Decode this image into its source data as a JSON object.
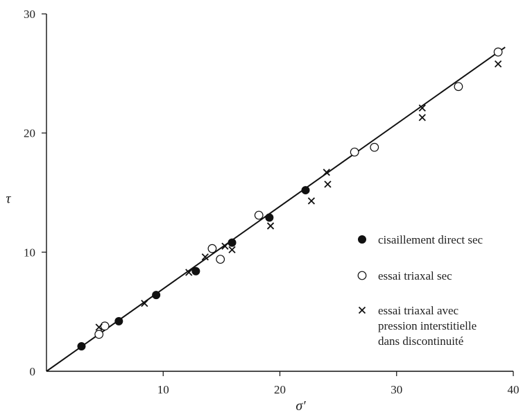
{
  "chart_data": {
    "type": "scatter",
    "xlabel": "σ′",
    "ylabel": "τ",
    "xlim": [
      0,
      40
    ],
    "ylim": [
      0,
      30
    ],
    "x_ticks": [
      0,
      10,
      20,
      30,
      40
    ],
    "y_ticks": [
      0,
      10,
      20,
      30
    ],
    "legend_position": "right",
    "grid": false,
    "series": [
      {
        "name": "cisaillement direct sec",
        "marker": "filled-circle",
        "points": [
          [
            3.0,
            2.1
          ],
          [
            6.2,
            4.2
          ],
          [
            9.4,
            6.4
          ],
          [
            12.8,
            8.4
          ],
          [
            15.9,
            10.8
          ],
          [
            19.1,
            12.9
          ],
          [
            22.2,
            15.2
          ]
        ]
      },
      {
        "name": "essai triaxal sec",
        "marker": "open-circle",
        "points": [
          [
            4.5,
            3.1
          ],
          [
            5.0,
            3.8
          ],
          [
            14.2,
            10.3
          ],
          [
            14.9,
            9.4
          ],
          [
            18.2,
            13.1
          ],
          [
            26.4,
            18.4
          ],
          [
            28.1,
            18.8
          ],
          [
            35.3,
            23.9
          ],
          [
            38.7,
            26.8
          ]
        ]
      },
      {
        "name": "essai triaxal avec\npression interstitielle\ndans discontinuité",
        "marker": "cross",
        "points": [
          [
            4.5,
            3.7
          ],
          [
            8.4,
            5.7
          ],
          [
            12.2,
            8.3
          ],
          [
            13.6,
            9.6
          ],
          [
            15.3,
            10.5
          ],
          [
            15.9,
            10.2
          ],
          [
            19.2,
            12.2
          ],
          [
            22.7,
            14.3
          ],
          [
            24.0,
            16.7
          ],
          [
            24.1,
            15.7
          ],
          [
            32.2,
            22.1
          ],
          [
            32.2,
            21.3
          ],
          [
            38.7,
            25.8
          ]
        ]
      }
    ],
    "fit_line": {
      "from": [
        0,
        0
      ],
      "to": [
        39.3,
        27.2
      ]
    }
  }
}
